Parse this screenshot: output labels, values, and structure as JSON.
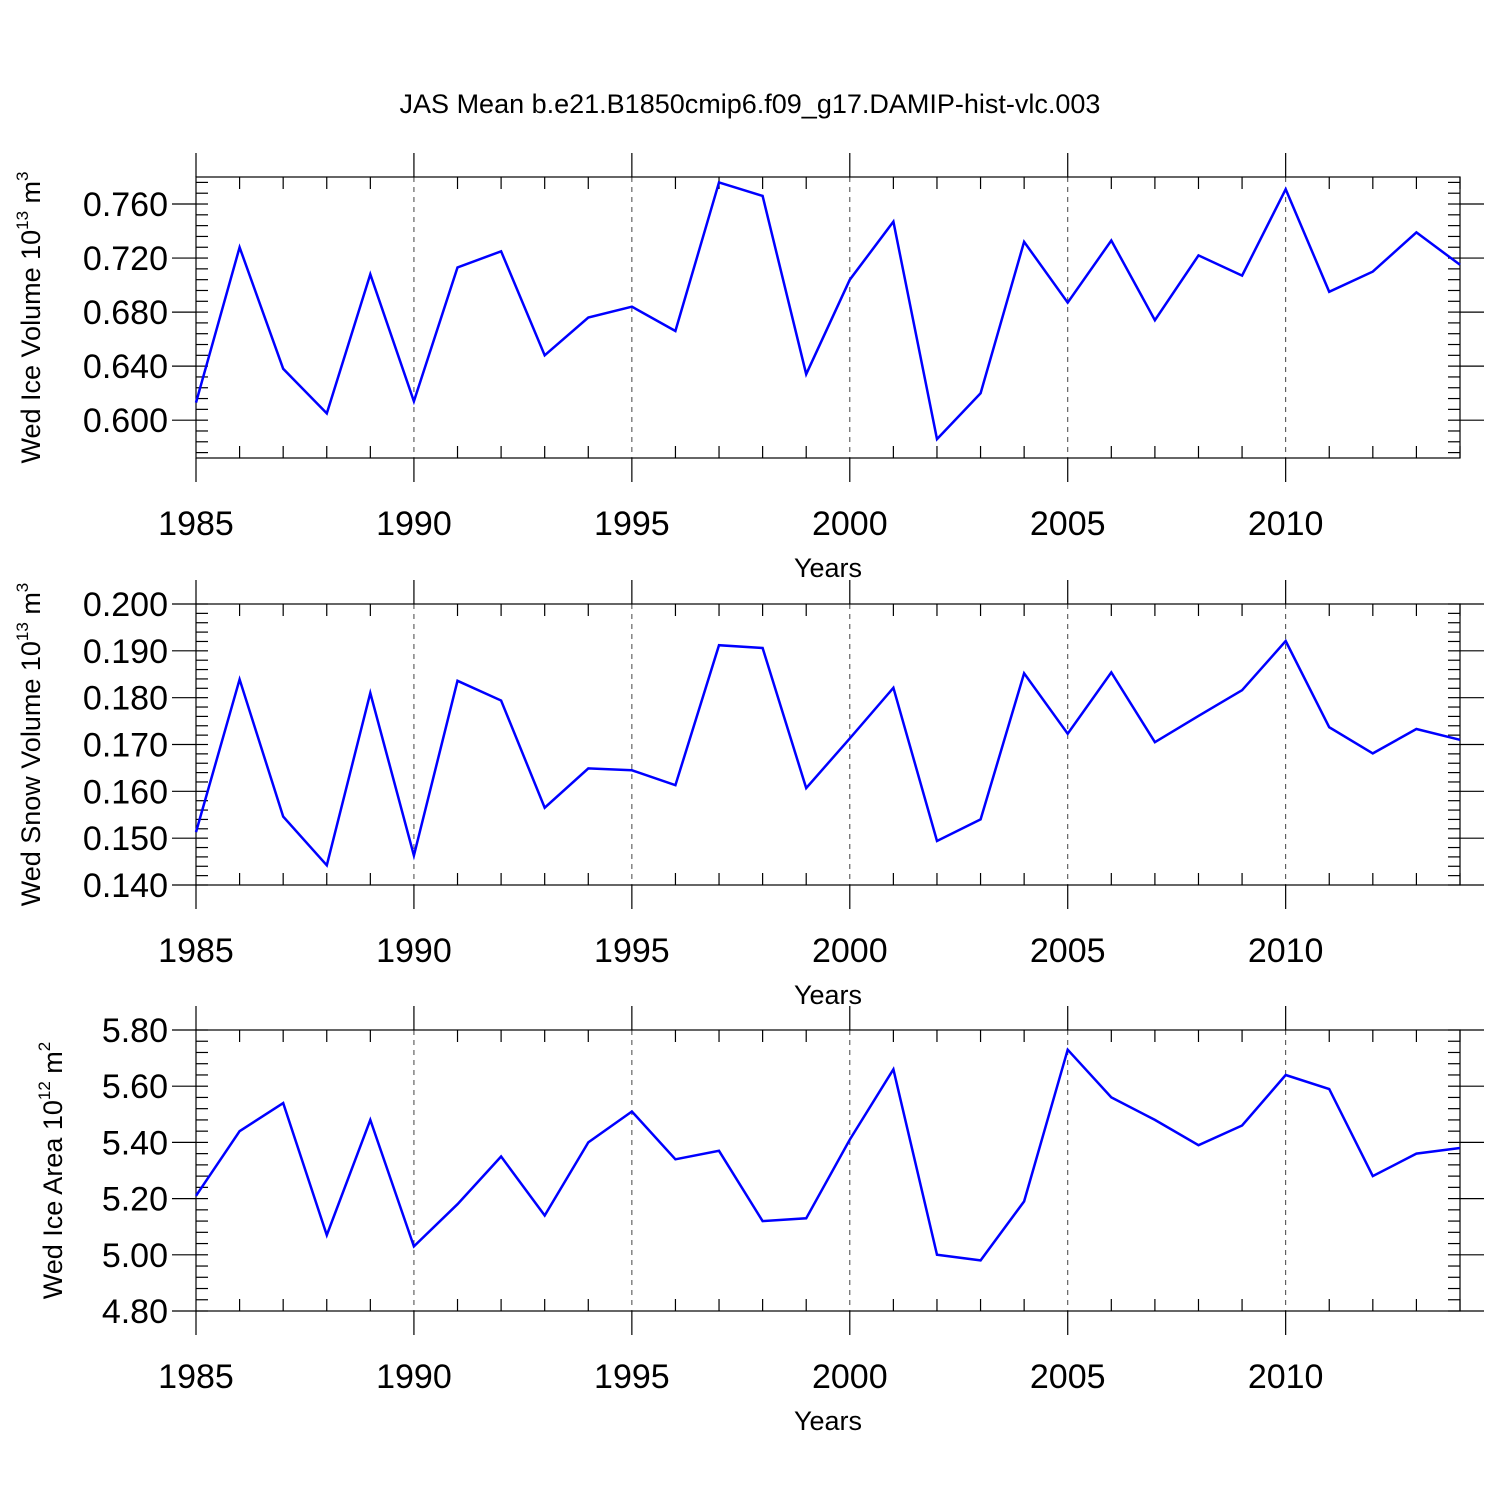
{
  "chart_data": {
    "title": "JAS Mean b.e21.B1850cmip6.f09_g17.DAMIP-hist-vlc.003",
    "panels": [
      {
        "type": "line",
        "name": "ice-volume",
        "xlabel": "Years",
        "ylabel_parts": [
          "Wed Ice Volume 10",
          "13",
          " m",
          "3"
        ],
        "xlim": [
          1985,
          2014
        ],
        "ylim": [
          0.572,
          0.78
        ],
        "x_ticks": [
          1985,
          1990,
          1995,
          2000,
          2005,
          2010
        ],
        "y_ticks": [
          "0.600",
          "0.640",
          "0.680",
          "0.720",
          "0.760"
        ],
        "y_minor_step": 0.008,
        "x": [
          1985,
          1986,
          1987,
          1988,
          1989,
          1990,
          1991,
          1992,
          1993,
          1994,
          1995,
          1996,
          1997,
          1998,
          1999,
          2000,
          2001,
          2002,
          2003,
          2004,
          2005,
          2006,
          2007,
          2008,
          2009,
          2010,
          2011,
          2012,
          2013,
          2014
        ],
        "series": [
          {
            "name": "Wed Ice Volume",
            "color": "#0000ff",
            "values": [
              0.613,
              0.728,
              0.638,
              0.605,
              0.708,
              0.614,
              0.713,
              0.725,
              0.648,
              0.676,
              0.684,
              0.666,
              0.776,
              0.766,
              0.634,
              0.704,
              0.747,
              0.586,
              0.62,
              0.732,
              0.687,
              0.733,
              0.674,
              0.722,
              0.707,
              0.771,
              0.695,
              0.71,
              0.739,
              0.715
            ]
          }
        ]
      },
      {
        "type": "line",
        "name": "snow-volume",
        "xlabel": "Years",
        "ylabel_parts": [
          "Wed Snow Volume 10",
          "13",
          " m",
          "3"
        ],
        "xlim": [
          1985,
          2014
        ],
        "ylim": [
          0.14,
          0.2
        ],
        "x_ticks": [
          1985,
          1990,
          1995,
          2000,
          2005,
          2010
        ],
        "y_ticks": [
          "0.140",
          "0.150",
          "0.160",
          "0.170",
          "0.180",
          "0.190",
          "0.200"
        ],
        "y_minor_step": 0.002,
        "x": [
          1985,
          1986,
          1987,
          1988,
          1989,
          1990,
          1991,
          1992,
          1993,
          1994,
          1995,
          1996,
          1997,
          1998,
          1999,
          2000,
          2001,
          2002,
          2003,
          2004,
          2005,
          2006,
          2007,
          2008,
          2009,
          2010,
          2011,
          2012,
          2013,
          2014
        ],
        "series": [
          {
            "name": "Wed Snow Volume",
            "color": "#0000ff",
            "values": [
              0.1513,
              0.1839,
              0.1546,
              0.1442,
              0.181,
              0.1463,
              0.1836,
              0.1794,
              0.1565,
              0.1649,
              0.1645,
              0.1613,
              0.1912,
              0.1906,
              0.1607,
              0.1713,
              0.1821,
              0.1494,
              0.154,
              0.1852,
              0.1723,
              0.1854,
              0.1705,
              0.1761,
              0.1816,
              0.1921,
              0.1737,
              0.1681,
              0.1733,
              0.171
            ]
          }
        ]
      },
      {
        "type": "line",
        "name": "ice-area",
        "xlabel": "Years",
        "ylabel_parts": [
          "Wed Ice Area 10",
          "12",
          " m",
          "2"
        ],
        "xlim": [
          1985,
          2014
        ],
        "ylim": [
          4.8,
          5.8
        ],
        "x_ticks": [
          1985,
          1990,
          1995,
          2000,
          2005,
          2010
        ],
        "y_ticks": [
          "4.80",
          "5.00",
          "5.20",
          "5.40",
          "5.60",
          "5.80"
        ],
        "y_minor_step": 0.04,
        "x": [
          1985,
          1986,
          1987,
          1988,
          1989,
          1990,
          1991,
          1992,
          1993,
          1994,
          1995,
          1996,
          1997,
          1998,
          1999,
          2000,
          2001,
          2002,
          2003,
          2004,
          2005,
          2006,
          2007,
          2008,
          2009,
          2010,
          2011,
          2012,
          2013,
          2014
        ],
        "series": [
          {
            "name": "Wed Ice Area",
            "color": "#0000ff",
            "values": [
              5.21,
              5.44,
              5.54,
              5.07,
              5.48,
              5.03,
              5.18,
              5.35,
              5.14,
              5.4,
              5.51,
              5.34,
              5.37,
              5.12,
              5.13,
              5.41,
              5.66,
              5.0,
              4.98,
              5.19,
              5.73,
              5.56,
              5.48,
              5.39,
              5.46,
              5.64,
              5.59,
              5.28,
              5.36,
              5.38
            ]
          }
        ]
      }
    ]
  }
}
